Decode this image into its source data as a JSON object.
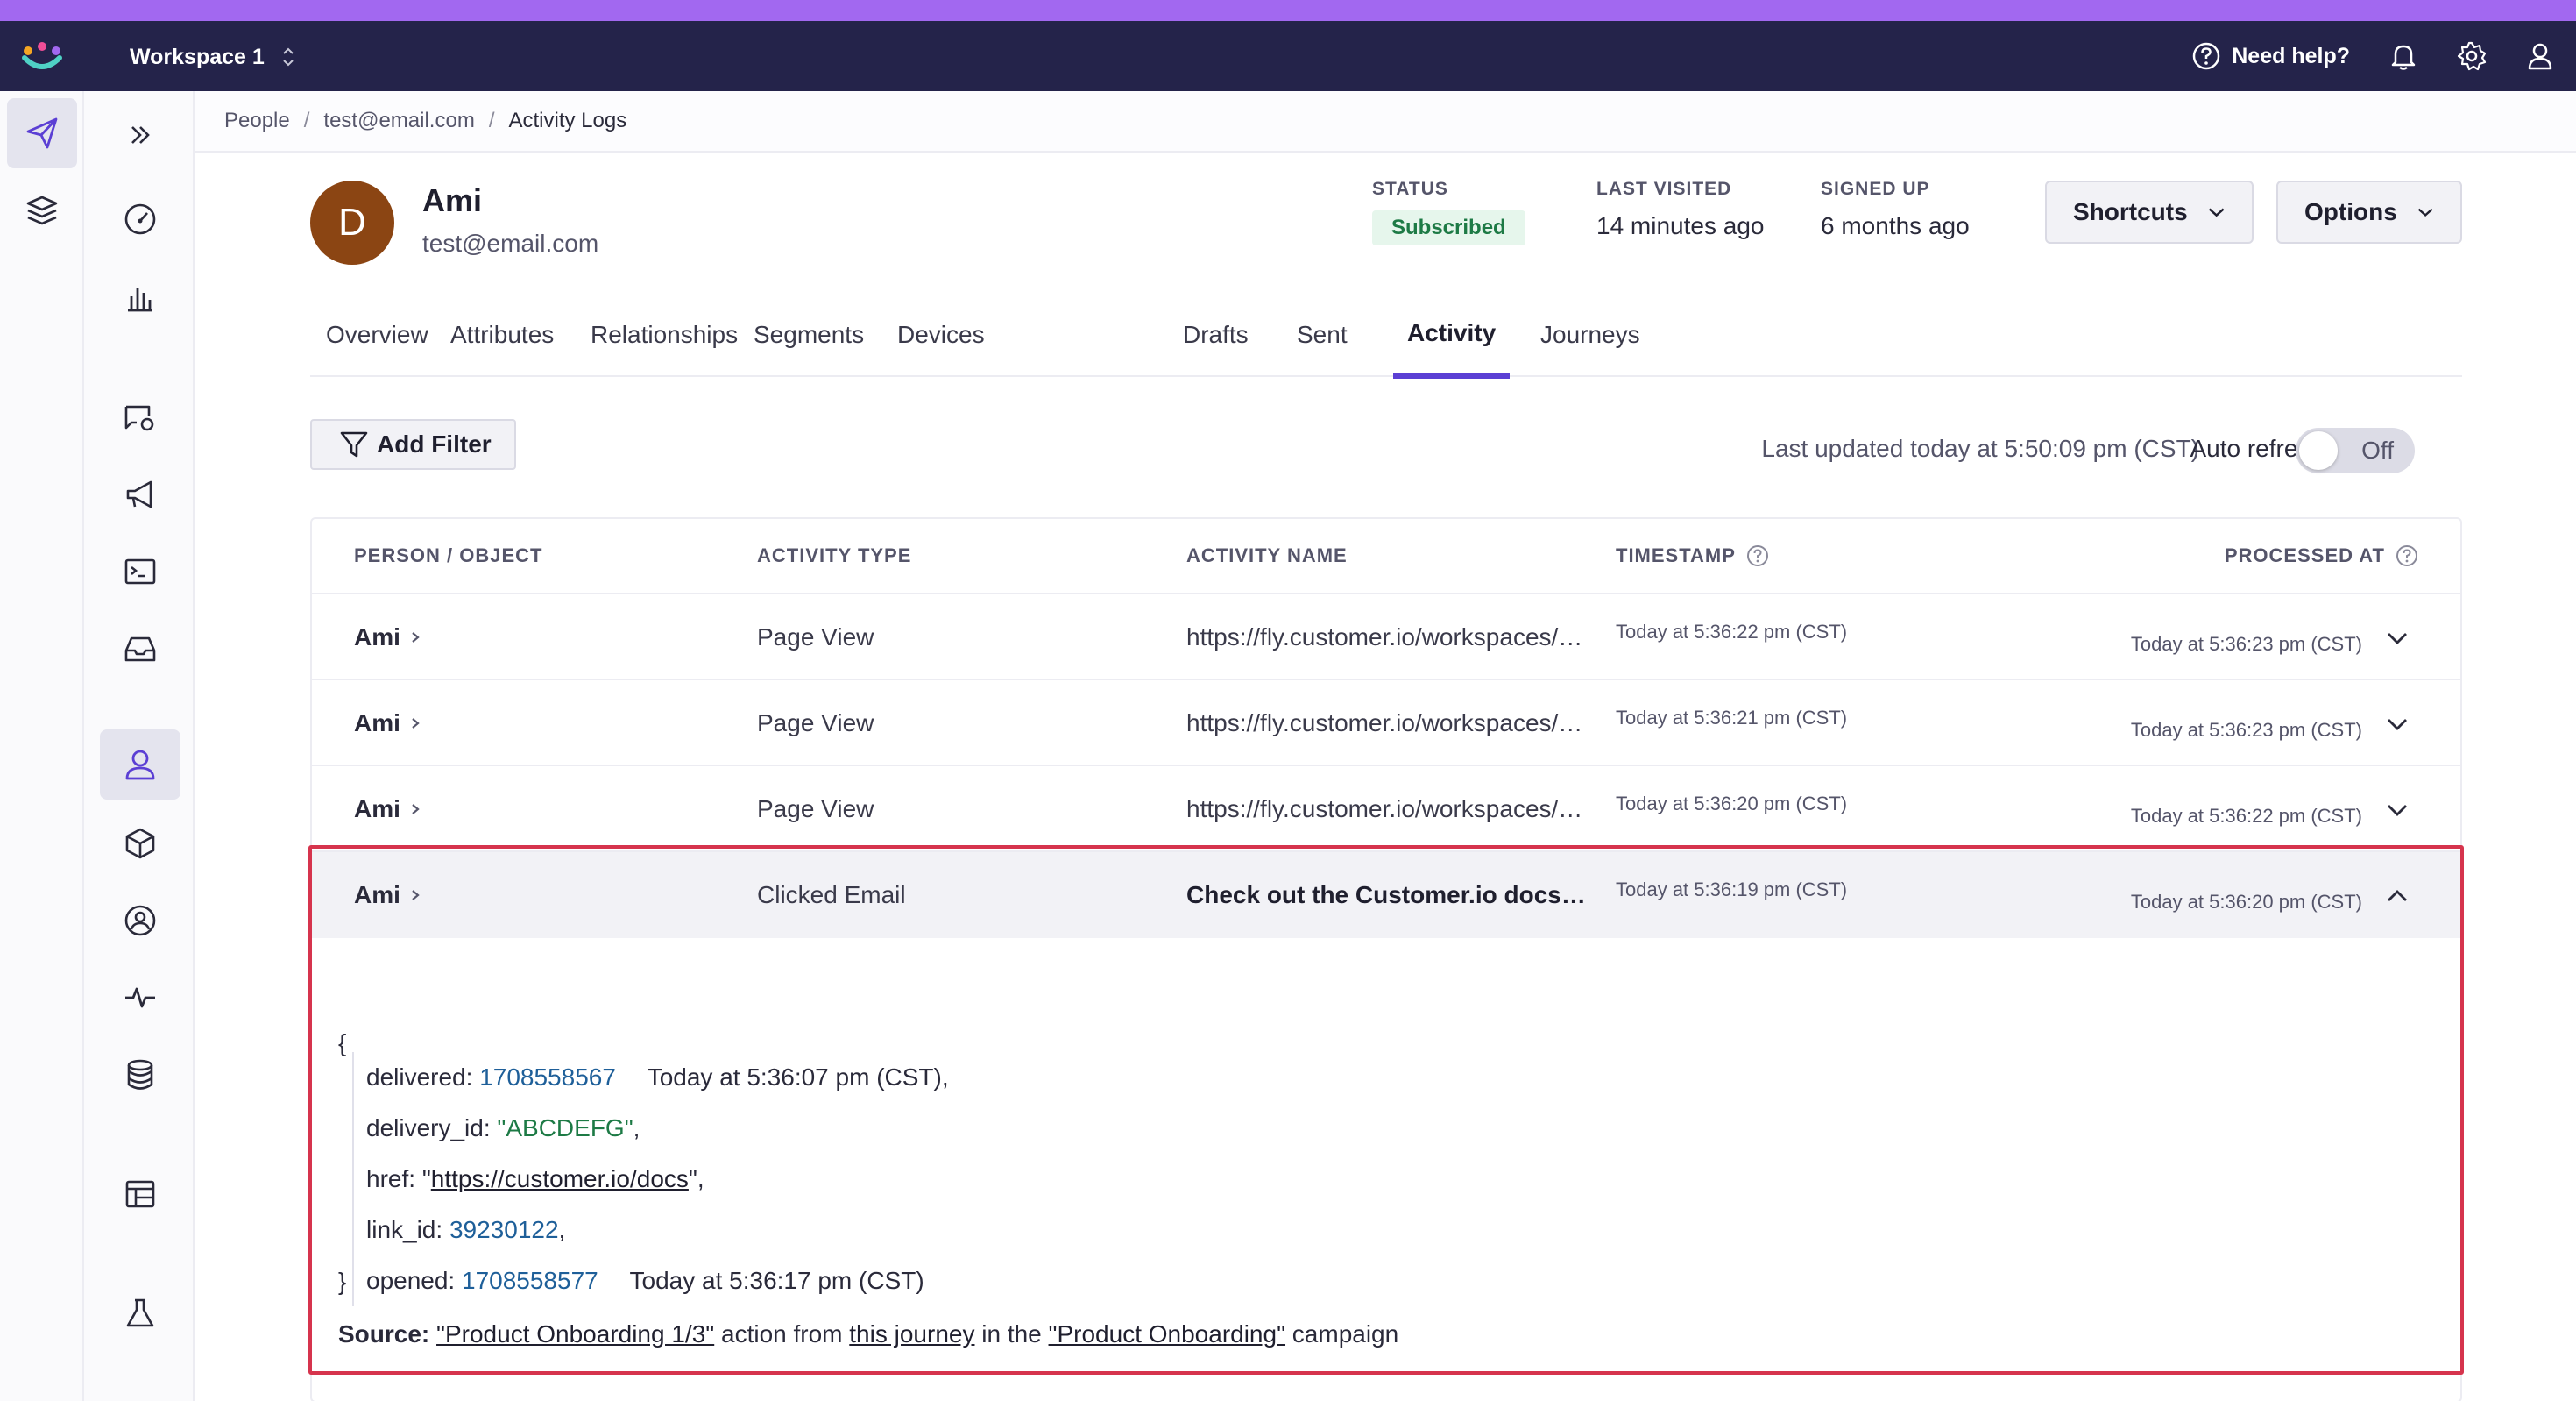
{
  "topbar": {
    "workspace": "Workspace 1",
    "help_label": "Need help?"
  },
  "breadcrumb": {
    "items": [
      "People",
      "test@email.com",
      "Activity Logs"
    ],
    "separator": "/"
  },
  "profile": {
    "initial": "D",
    "name": "Ami",
    "email": "test@email.com",
    "status_label": "STATUS",
    "status_value": "Subscribed",
    "last_visited_label": "LAST VISITED",
    "last_visited_value": "14 minutes ago",
    "signed_up_label": "SIGNED UP",
    "signed_up_value": "6 months ago",
    "shortcuts_label": "Shortcuts",
    "options_label": "Options"
  },
  "tabs": [
    "Overview",
    "Attributes",
    "Relationships",
    "Segments",
    "Devices",
    "Drafts",
    "Sent",
    "Activity",
    "Journeys"
  ],
  "active_tab": "Activity",
  "toolbar": {
    "add_filter_label": "Add Filter",
    "last_updated": "Last updated today at 5:50:09 pm (CST)",
    "auto_refresh_label": "Auto refresh",
    "toggle_state": "Off"
  },
  "table": {
    "headers": {
      "person": "PERSON / OBJECT",
      "type": "ACTIVITY TYPE",
      "name": "ACTIVITY NAME",
      "timestamp": "TIMESTAMP",
      "processed": "PROCESSED AT"
    },
    "rows": [
      {
        "person": "Ami",
        "type": "Page View",
        "name": "https://fly.customer.io/workspaces/…",
        "timestamp": "Today at 5:36:22 pm (CST)",
        "processed": "Today at 5:36:23 pm (CST)"
      },
      {
        "person": "Ami",
        "type": "Page View",
        "name": "https://fly.customer.io/workspaces/…",
        "timestamp": "Today at 5:36:21 pm (CST)",
        "processed": "Today at 5:36:23 pm (CST)"
      },
      {
        "person": "Ami",
        "type": "Page View",
        "name": "https://fly.customer.io/workspaces/…",
        "timestamp": "Today at 5:36:20 pm (CST)",
        "processed": "Today at 5:36:22 pm (CST)"
      },
      {
        "person": "Ami",
        "type": "Clicked Email",
        "name": "Check out the Customer.io docs…",
        "timestamp": "Today at 5:36:19 pm (CST)",
        "processed": "Today at 5:36:20 pm (CST)"
      }
    ]
  },
  "detail": {
    "open_brace": "{",
    "close_brace": "}",
    "delivered_key": "delivered:",
    "delivered_value": "1708558567",
    "delivered_annotation": "Today at 5:36:07 pm (CST),",
    "delivery_id_key": "delivery_id:",
    "delivery_id_value": "\"ABCDEFG\"",
    "delivery_id_comma": ",",
    "href_key": "href:",
    "href_quote_open": "\"",
    "href_value": "https://customer.io/docs",
    "href_quote_close": "\",",
    "link_id_key": "link_id:",
    "link_id_value": "39230122",
    "link_id_comma": ",",
    "opened_key": "opened:",
    "opened_value": "1708558577",
    "opened_annotation": "Today at 5:36:17 pm (CST)",
    "source_label": "Source:",
    "source_action": "\"Product Onboarding 1/3\"",
    "source_text1": "action from",
    "source_journey": "this journey",
    "source_text2": "in the",
    "source_campaign": "\"Product Onboarding\"",
    "source_text3": "campaign"
  },
  "colors": {
    "accent": "#a268f0",
    "topbar": "#24234a",
    "tab_active": "#5b3fd4",
    "highlight": "#d6344d",
    "subscribed_bg": "#e6f6ec",
    "subscribed_text": "#1d7a45",
    "number": "#1e5f99"
  }
}
